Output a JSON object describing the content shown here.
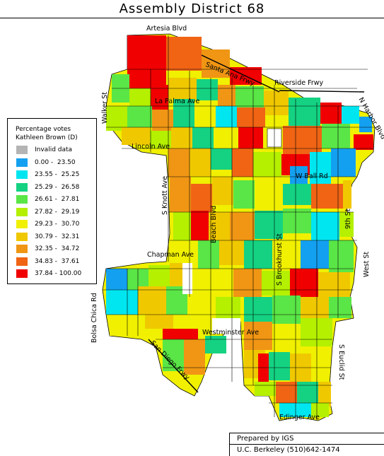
{
  "title": "Assembly District 68",
  "legend": {
    "title": "Percentage votes",
    "subtitle": "Kathleen Brown (D)",
    "items": [
      {
        "label": "Invalid data",
        "color": "#b4b4b4"
      },
      {
        "label": "0.00 -  23.50",
        "color": "#14a0f0"
      },
      {
        "label": "23.55 -  25.25",
        "color": "#00e6f0"
      },
      {
        "label": "25.29 -  26.58",
        "color": "#14d282"
      },
      {
        "label": "26.61 -  27.81",
        "color": "#5ae646"
      },
      {
        "label": "27.82 -  29.19",
        "color": "#b4f000"
      },
      {
        "label": "29.23 -  30.70",
        "color": "#f0f000"
      },
      {
        "label": "30.79 -  32.31",
        "color": "#f0c800"
      },
      {
        "label": "32.35 -  34.72",
        "color": "#f09614"
      },
      {
        "label": "34.83 -  37.61",
        "color": "#f06414"
      },
      {
        "label": "37.84 - 100.00",
        "color": "#f00000"
      }
    ]
  },
  "streets": {
    "artesia": "Artesia Blvd",
    "santa_ana": "Santa Ana Frwy",
    "riverside": "Riverside Frwy",
    "walker": "Walker St",
    "la_palma": "La Palma Ave",
    "n_harbor": "N Harbor Blvd",
    "lincoln": "Lincoln Ave",
    "w_ball": "W Ball Rd",
    "knott": "S Knott Ave",
    "beach": "Beach Blvd",
    "ninth": "9th St",
    "brookhurst": "S Brookhurst St",
    "chapman": "Chapman Ave",
    "west": "West St",
    "bolsa_chica": "Bolsa Chica Rd",
    "westminster": "Westminster Ave",
    "san_diego": "San Diego Frwy",
    "euclid": "S Euclid St",
    "edinger": "Edinger Ave"
  },
  "credit": {
    "line1": "Prepared by IGS",
    "line2": "U.C. Berkeley  (510)642-1474"
  }
}
